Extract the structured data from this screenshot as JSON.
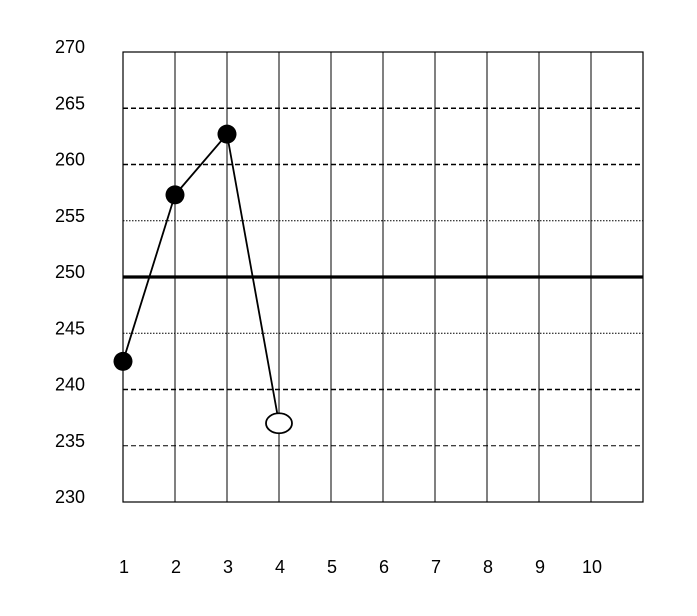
{
  "chart_data": {
    "type": "line",
    "title": "",
    "xlabel": "",
    "ylabel": "",
    "x_ticks": [
      "1",
      "2",
      "3",
      "4",
      "5",
      "6",
      "7",
      "8",
      "9",
      "10"
    ],
    "y_ticks": [
      "270",
      "265",
      "260",
      "255",
      "250",
      "245",
      "240",
      "235",
      "230"
    ],
    "ylim": [
      230,
      270
    ],
    "xlim": [
      1,
      11
    ],
    "grid": true,
    "reference_lines": [
      {
        "y": 265,
        "style": "dashed-bold"
      },
      {
        "y": 260,
        "style": "dashed-bold"
      },
      {
        "y": 255,
        "style": "dotted"
      },
      {
        "y": 250,
        "style": "solid-bold"
      },
      {
        "y": 245,
        "style": "dotted"
      },
      {
        "y": 240,
        "style": "dashed-bold"
      },
      {
        "y": 235,
        "style": "dashed"
      }
    ],
    "series": [
      {
        "points": [
          {
            "x": 1,
            "y": 242.5,
            "marker": "filled"
          },
          {
            "x": 2,
            "y": 257.3,
            "marker": "filled"
          },
          {
            "x": 3,
            "y": 262.7,
            "marker": "filled"
          },
          {
            "x": 4,
            "y": 237.0,
            "marker": "open"
          }
        ],
        "color": "#000000"
      }
    ]
  }
}
